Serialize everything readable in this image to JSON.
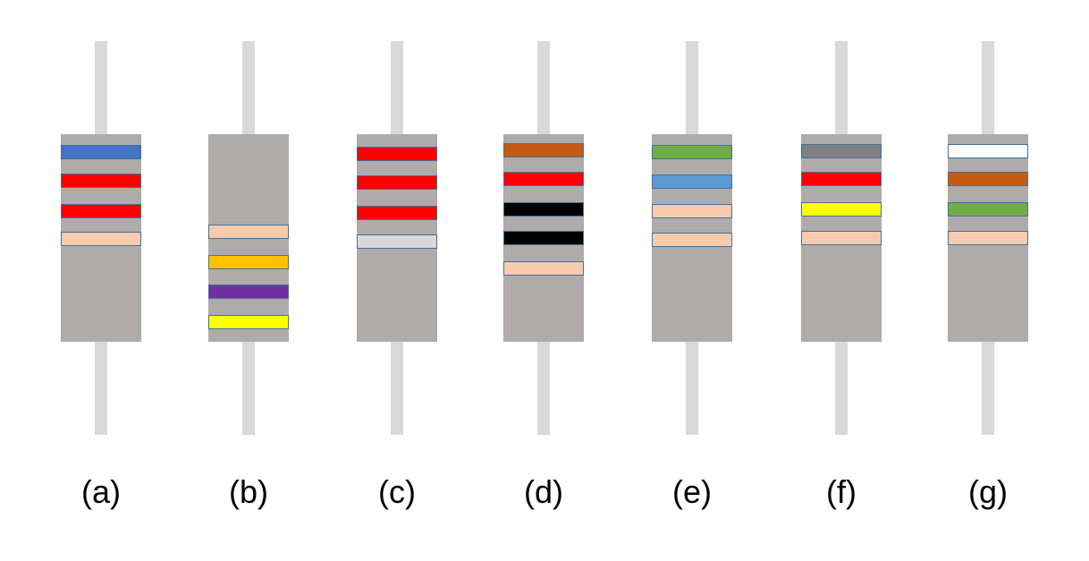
{
  "colors": {
    "lead": "#d9d9d9",
    "body": "#afabab",
    "band_outline": "#41719c",
    "blue": "#4472c4",
    "red": "#ff0000",
    "peach": "#f8cbad",
    "orange": "#ffc000",
    "purple": "#7030a0",
    "yellow": "#ffff00",
    "light_gray": "#d9d9d9",
    "brown": "#c55a11",
    "black": "#000000",
    "green": "#70ad47",
    "light_blue": "#5b9bd5",
    "gray": "#7f7f7f",
    "white": "#ffffff"
  },
  "resistors": [
    {
      "label": "(a)",
      "bands": [
        "blue",
        "red",
        "red",
        "peach"
      ]
    },
    {
      "label": "(b)",
      "bands": [
        "peach",
        "orange",
        "purple",
        "yellow"
      ]
    },
    {
      "label": "(c)",
      "bands": [
        "red",
        "red",
        "red",
        "light_gray"
      ]
    },
    {
      "label": "(d)",
      "bands": [
        "brown",
        "red",
        "black",
        "black",
        "peach"
      ]
    },
    {
      "label": "(e)",
      "bands": [
        "green",
        "light_blue",
        "peach",
        "peach"
      ]
    },
    {
      "label": "(f)",
      "bands": [
        "gray",
        "red",
        "yellow",
        "peach"
      ]
    },
    {
      "label": "(g)",
      "bands": [
        "white",
        "brown",
        "green",
        "peach"
      ]
    }
  ]
}
